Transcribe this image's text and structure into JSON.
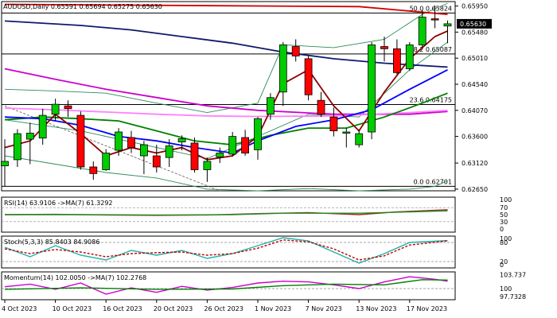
{
  "chart_data": {
    "type": "candlestick",
    "symbol": "AUDUSD",
    "timeframe": "Daily",
    "ohlc_header": {
      "open": "0.65591",
      "high": "0.65694",
      "low": "0.65275",
      "close": "0.65630"
    },
    "price_axis": {
      "ticks": [
        0.6595,
        0.6548,
        0.6501,
        0.6454,
        0.6407,
        0.636,
        0.6312,
        0.6265
      ],
      "tick_labels": [
        "0.65950",
        "0.65480",
        "0.65010",
        "0.64540",
        "0.64070",
        "0.63600",
        "0.63120",
        "0.62650"
      ],
      "current_price_label": "0.65630",
      "ylim": [
        0.6262,
        0.6603
      ]
    },
    "x_axis": {
      "date_labels": [
        {
          "index": 0,
          "label": "4 Oct 2023"
        },
        {
          "index": 4,
          "label": "10 Oct 2023"
        },
        {
          "index": 8,
          "label": "16 Oct 2023"
        },
        {
          "index": 12,
          "label": "20 Oct 2023"
        },
        {
          "index": 16,
          "label": "26 Oct 2023"
        },
        {
          "index": 20,
          "label": "1 Nov 2023"
        },
        {
          "index": 24,
          "label": "7 Nov 2023"
        },
        {
          "index": 28,
          "label": "13 Nov 2023"
        },
        {
          "index": 32,
          "label": "17 Nov 2023"
        }
      ]
    },
    "candles": [
      {
        "o": 0.6307,
        "h": 0.6355,
        "l": 0.627,
        "c": 0.6315
      },
      {
        "o": 0.6318,
        "h": 0.6373,
        "l": 0.6305,
        "c": 0.6365
      },
      {
        "o": 0.6355,
        "h": 0.6385,
        "l": 0.631,
        "c": 0.6366
      },
      {
        "o": 0.6357,
        "h": 0.641,
        "l": 0.6345,
        "c": 0.6398
      },
      {
        "o": 0.64,
        "h": 0.6428,
        "l": 0.6388,
        "c": 0.6418
      },
      {
        "o": 0.6415,
        "h": 0.6425,
        "l": 0.6395,
        "c": 0.641
      },
      {
        "o": 0.6398,
        "h": 0.6405,
        "l": 0.63,
        "c": 0.6305
      },
      {
        "o": 0.6305,
        "h": 0.6315,
        "l": 0.6282,
        "c": 0.6293
      },
      {
        "o": 0.63,
        "h": 0.6337,
        "l": 0.6298,
        "c": 0.633
      },
      {
        "o": 0.6335,
        "h": 0.6375,
        "l": 0.6325,
        "c": 0.6368
      },
      {
        "o": 0.6358,
        "h": 0.637,
        "l": 0.633,
        "c": 0.634
      },
      {
        "o": 0.6325,
        "h": 0.6352,
        "l": 0.6292,
        "c": 0.6345
      },
      {
        "o": 0.6325,
        "h": 0.6345,
        "l": 0.6295,
        "c": 0.6305
      },
      {
        "o": 0.6322,
        "h": 0.6355,
        "l": 0.6305,
        "c": 0.6343
      },
      {
        "o": 0.635,
        "h": 0.6362,
        "l": 0.6335,
        "c": 0.6356
      },
      {
        "o": 0.6348,
        "h": 0.6358,
        "l": 0.6295,
        "c": 0.63
      },
      {
        "o": 0.63,
        "h": 0.6322,
        "l": 0.6278,
        "c": 0.6315
      },
      {
        "o": 0.6323,
        "h": 0.634,
        "l": 0.6312,
        "c": 0.633
      },
      {
        "o": 0.6328,
        "h": 0.6368,
        "l": 0.6324,
        "c": 0.636
      },
      {
        "o": 0.6358,
        "h": 0.6372,
        "l": 0.6325,
        "c": 0.633
      },
      {
        "o": 0.6336,
        "h": 0.6395,
        "l": 0.6318,
        "c": 0.6392
      },
      {
        "o": 0.64,
        "h": 0.6438,
        "l": 0.639,
        "c": 0.643
      },
      {
        "o": 0.644,
        "h": 0.653,
        "l": 0.6415,
        "c": 0.6525
      },
      {
        "o": 0.6522,
        "h": 0.6535,
        "l": 0.6495,
        "c": 0.6505
      },
      {
        "o": 0.65,
        "h": 0.6505,
        "l": 0.6425,
        "c": 0.6435
      },
      {
        "o": 0.6425,
        "h": 0.644,
        "l": 0.6395,
        "c": 0.64
      },
      {
        "o": 0.6395,
        "h": 0.6412,
        "l": 0.636,
        "c": 0.637
      },
      {
        "o": 0.6368,
        "h": 0.6375,
        "l": 0.634,
        "c": 0.6368
      },
      {
        "o": 0.6345,
        "h": 0.6372,
        "l": 0.634,
        "c": 0.6365
      },
      {
        "o": 0.6368,
        "h": 0.653,
        "l": 0.6355,
        "c": 0.6525
      },
      {
        "o": 0.6522,
        "h": 0.654,
        "l": 0.6495,
        "c": 0.6518
      },
      {
        "o": 0.6518,
        "h": 0.6535,
        "l": 0.6472,
        "c": 0.6475
      },
      {
        "o": 0.6482,
        "h": 0.653,
        "l": 0.6478,
        "c": 0.6525
      },
      {
        "o": 0.6525,
        "h": 0.6588,
        "l": 0.652,
        "c": 0.6575
      },
      {
        "o": 0.6572,
        "h": 0.6596,
        "l": 0.6555,
        "c": 0.657
      },
      {
        "o": 0.6559,
        "h": 0.6569,
        "l": 0.6528,
        "c": 0.6563
      }
    ],
    "moving_averages": [
      {
        "color": "#d40000",
        "values": [
          [
            0,
            0.6598
          ],
          [
            28,
            0.6594
          ],
          [
            35,
            0.658
          ]
        ]
      },
      {
        "color": "#0e1a6e",
        "values": [
          [
            0,
            0.6568
          ],
          [
            6,
            0.656
          ],
          [
            10,
            0.6552
          ],
          [
            14,
            0.654
          ],
          [
            18,
            0.6528
          ],
          [
            22,
            0.6512
          ],
          [
            26,
            0.65
          ],
          [
            30,
            0.6492
          ],
          [
            35,
            0.6485
          ]
        ]
      },
      {
        "color": "#cc00cc",
        "values": [
          [
            0,
            0.6482
          ],
          [
            4,
            0.6463
          ],
          [
            8,
            0.6445
          ],
          [
            12,
            0.643
          ],
          [
            16,
            0.6415
          ],
          [
            20,
            0.6407
          ],
          [
            26,
            0.64
          ],
          [
            32,
            0.64
          ],
          [
            35,
            0.6405
          ]
        ]
      },
      {
        "color": "#ff80ff",
        "values": [
          [
            0,
            0.6411
          ],
          [
            4,
            0.6408
          ],
          [
            8,
            0.6404
          ],
          [
            12,
            0.64
          ],
          [
            16,
            0.6397
          ],
          [
            20,
            0.6396
          ],
          [
            26,
            0.6397
          ],
          [
            32,
            0.6403
          ],
          [
            35,
            0.6407
          ]
        ]
      },
      {
        "color": "#008000",
        "values": [
          [
            0,
            0.639
          ],
          [
            3,
            0.6395
          ],
          [
            6,
            0.6392
          ],
          [
            9,
            0.6388
          ],
          [
            12,
            0.637
          ],
          [
            15,
            0.6352
          ],
          [
            18,
            0.6345
          ],
          [
            21,
            0.6362
          ],
          [
            24,
            0.6375
          ],
          [
            27,
            0.6375
          ],
          [
            30,
            0.6395
          ],
          [
            33,
            0.642
          ],
          [
            35,
            0.6438
          ]
        ]
      },
      {
        "color": "#0000ff",
        "values": [
          [
            0,
            0.6395
          ],
          [
            3,
            0.6392
          ],
          [
            6,
            0.638
          ],
          [
            9,
            0.636
          ],
          [
            12,
            0.6352
          ],
          [
            15,
            0.634
          ],
          [
            18,
            0.633
          ],
          [
            20,
            0.6352
          ],
          [
            23,
            0.6378
          ],
          [
            26,
            0.639
          ],
          [
            29,
            0.6408
          ],
          [
            32,
            0.6445
          ],
          [
            35,
            0.648
          ]
        ]
      },
      {
        "color": "#8b0000",
        "values": [
          [
            0,
            0.634
          ],
          [
            2,
            0.6352
          ],
          [
            4,
            0.64
          ],
          [
            6,
            0.6365
          ],
          [
            8,
            0.6325
          ],
          [
            10,
            0.634
          ],
          [
            12,
            0.633
          ],
          [
            14,
            0.634
          ],
          [
            16,
            0.6318
          ],
          [
            18,
            0.6325
          ],
          [
            20,
            0.636
          ],
          [
            22,
            0.6455
          ],
          [
            24,
            0.648
          ],
          [
            26,
            0.6415
          ],
          [
            28,
            0.637
          ],
          [
            30,
            0.644
          ],
          [
            32,
            0.65
          ],
          [
            34,
            0.654
          ],
          [
            35,
            0.655
          ]
        ]
      }
    ],
    "bollinger": {
      "color": "#2e8b57",
      "upper": [
        [
          0,
          0.6445
        ],
        [
          4,
          0.6442
        ],
        [
          8,
          0.6438
        ],
        [
          12,
          0.642
        ],
        [
          16,
          0.6403
        ],
        [
          20,
          0.642
        ],
        [
          22,
          0.6525
        ],
        [
          26,
          0.652
        ],
        [
          30,
          0.6535
        ],
        [
          33,
          0.658
        ],
        [
          35,
          0.66
        ]
      ],
      "middle": [
        [
          0,
          0.639
        ],
        [
          6,
          0.637
        ],
        [
          12,
          0.634
        ],
        [
          16,
          0.632
        ],
        [
          20,
          0.636
        ],
        [
          24,
          0.64
        ],
        [
          28,
          0.6395
        ],
        [
          32,
          0.648
        ],
        [
          35,
          0.653
        ]
      ],
      "lower": [
        [
          0,
          0.6325
        ],
        [
          8,
          0.6295
        ],
        [
          12,
          0.6285
        ],
        [
          16,
          0.6265
        ],
        [
          20,
          0.6262
        ],
        [
          24,
          0.6266
        ],
        [
          28,
          0.6262
        ],
        [
          32,
          0.6265
        ],
        [
          34,
          0.627
        ],
        [
          35,
          0.628
        ]
      ]
    },
    "fib_levels": [
      {
        "label": "50.0 0.65824",
        "price": 0.65824
      },
      {
        "label": "38.2 0.65087",
        "price": 0.65087
      },
      {
        "label": "23.6 0.64175",
        "price": 0.64175
      },
      {
        "label": "0.0 0.62701",
        "price": 0.62701
      }
    ],
    "trendline_dashed": [
      [
        0,
        0.6415
      ],
      [
        17,
        0.6262
      ]
    ],
    "panels": [
      {
        "title": "RSI(14) 63.9106  ->MA(7) 61.3292",
        "axis_labels": [
          "100",
          "70",
          "50",
          "30",
          "0"
        ],
        "axis_values": [
          100,
          70,
          50,
          30,
          0
        ],
        "range": [
          0,
          100
        ],
        "guides": [
          70,
          30
        ],
        "series": [
          {
            "color": "#a52a2a",
            "values": [
              [
                0,
                50
              ],
              [
                4,
                51
              ],
              [
                8,
                49
              ],
              [
                12,
                48
              ],
              [
                16,
                49
              ],
              [
                20,
                53
              ],
              [
                24,
                56
              ],
              [
                28,
                50
              ],
              [
                31,
                58
              ],
              [
                35,
                64
              ]
            ]
          },
          {
            "color": "#228b22",
            "values": [
              [
                0,
                50
              ],
              [
                6,
                50
              ],
              [
                12,
                49
              ],
              [
                18,
                50
              ],
              [
                22,
                54
              ],
              [
                28,
                54
              ],
              [
                32,
                58
              ],
              [
                35,
                61
              ]
            ]
          }
        ]
      },
      {
        "title": "Stoch(5,3,3) 85.8403 84.9086",
        "axis_labels": [
          "100",
          "80",
          "20",
          "0"
        ],
        "axis_values": [
          100,
          80,
          20,
          0
        ],
        "range": [
          0,
          100
        ],
        "guides": [
          80,
          20
        ],
        "series": [
          {
            "color": "#20b2aa",
            "values": [
              [
                0,
                65
              ],
              [
                2,
                35
              ],
              [
                4,
                70
              ],
              [
                6,
                40
              ],
              [
                8,
                25
              ],
              [
                10,
                55
              ],
              [
                12,
                40
              ],
              [
                14,
                55
              ],
              [
                16,
                30
              ],
              [
                18,
                45
              ],
              [
                20,
                70
              ],
              [
                22,
                95
              ],
              [
                24,
                85
              ],
              [
                26,
                50
              ],
              [
                28,
                15
              ],
              [
                30,
                45
              ],
              [
                32,
                80
              ],
              [
                35,
                86
              ]
            ]
          },
          {
            "color": "#c00000",
            "dash": true,
            "values": [
              [
                0,
                60
              ],
              [
                2,
                45
              ],
              [
                4,
                58
              ],
              [
                6,
                50
              ],
              [
                8,
                35
              ],
              [
                10,
                45
              ],
              [
                12,
                48
              ],
              [
                14,
                50
              ],
              [
                16,
                40
              ],
              [
                18,
                45
              ],
              [
                20,
                62
              ],
              [
                22,
                88
              ],
              [
                24,
                82
              ],
              [
                26,
                60
              ],
              [
                28,
                25
              ],
              [
                30,
                38
              ],
              [
                32,
                72
              ],
              [
                35,
                85
              ]
            ]
          }
        ]
      },
      {
        "title": "Momentum(14) 102.0050  ->MA(7) 102.2768",
        "axis_labels": [
          "103.737",
          "100",
          "97.7328"
        ],
        "axis_values": [
          103.737,
          100,
          97.7328
        ],
        "range": [
          97.0,
          104.5
        ],
        "guides": [
          100
        ],
        "series": [
          {
            "color": "#cc00cc",
            "values": [
              [
                0,
                100.5
              ],
              [
                2,
                101.2
              ],
              [
                4,
                99.8
              ],
              [
                6,
                101.5
              ],
              [
                8,
                98.5
              ],
              [
                10,
                100.2
              ],
              [
                12,
                99.0
              ],
              [
                14,
                100.6
              ],
              [
                16,
                99.6
              ],
              [
                18,
                100.3
              ],
              [
                20,
                101.5
              ],
              [
                22,
                102.0
              ],
              [
                24,
                101.8
              ],
              [
                26,
                101.0
              ],
              [
                28,
                100.0
              ],
              [
                30,
                101.8
              ],
              [
                32,
                103.2
              ],
              [
                34,
                102.5
              ],
              [
                35,
                102.0
              ]
            ]
          },
          {
            "color": "#008000",
            "values": [
              [
                0,
                99.8
              ],
              [
                6,
                100.2
              ],
              [
                12,
                99.8
              ],
              [
                18,
                99.9
              ],
              [
                22,
                100.8
              ],
              [
                26,
                101.2
              ],
              [
                30,
                101.0
              ],
              [
                33,
                102.4
              ],
              [
                35,
                102.3
              ]
            ]
          }
        ]
      }
    ]
  }
}
